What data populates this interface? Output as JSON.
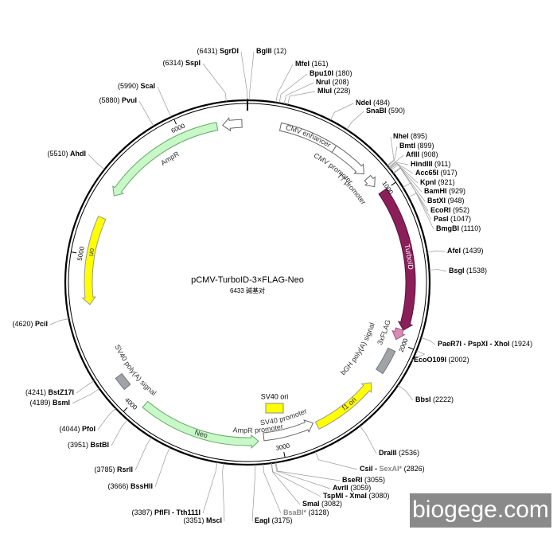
{
  "title": "pCMV-TurboID-3×FLAG-Neo",
  "subtitle": "6433 碱基对",
  "watermark": "biogege.com",
  "total_bp": 6433,
  "scale_ticks": [
    1000,
    2000,
    3000,
    4000,
    5000,
    6000
  ],
  "sites": [
    {
      "name": "SgrDI",
      "pos": "(6431)"
    },
    {
      "name": "BglII",
      "pos": "(12)"
    },
    {
      "name": "MfeI",
      "pos": "(161)"
    },
    {
      "name": "Bpu10I",
      "pos": "(180)"
    },
    {
      "name": "NruI",
      "pos": "(208)"
    },
    {
      "name": "MluI",
      "pos": "(228)"
    },
    {
      "name": "NdeI",
      "pos": "(484)"
    },
    {
      "name": "SnaBI",
      "pos": "(590)"
    },
    {
      "name": "NheI",
      "pos": "(895)"
    },
    {
      "name": "BmtI",
      "pos": "(899)"
    },
    {
      "name": "AflII",
      "pos": "(908)"
    },
    {
      "name": "HindIII",
      "pos": "(911)"
    },
    {
      "name": "Acc65I",
      "pos": "(917)"
    },
    {
      "name": "KpnI",
      "pos": "(921)"
    },
    {
      "name": "BamHI",
      "pos": "(929)"
    },
    {
      "name": "BstXI",
      "pos": "(948)"
    },
    {
      "name": "EcoRI",
      "pos": "(952)"
    },
    {
      "name": "PasI",
      "pos": "(1047)"
    },
    {
      "name": "BmgBI",
      "pos": "(1110)"
    },
    {
      "name": "AfeI",
      "pos": "(1439)"
    },
    {
      "name": "BsgI",
      "pos": "(1538)"
    },
    {
      "name": "PaeR7I - PspXI - XhoI",
      "pos": "(1924)"
    },
    {
      "name": "EcoO109I",
      "pos": "(2002)"
    },
    {
      "name": "BbsI",
      "pos": "(2222)"
    },
    {
      "name": "DraIII",
      "pos": "(2536)"
    },
    {
      "name": "CsiI -",
      "name_gray": "SexAI*",
      "pos": "(2826)"
    },
    {
      "name": "BseRI",
      "pos": "(3055)"
    },
    {
      "name": "AvrII",
      "pos": "(3059)"
    },
    {
      "name": "TspMI - XmaI",
      "pos": "(3080)"
    },
    {
      "name": "SmaI",
      "pos": "(3082)"
    },
    {
      "name_gray": "BsaBI*",
      "pos": "(3128)"
    },
    {
      "name": "EagI",
      "pos": "(3175)"
    },
    {
      "name": "SspI",
      "pos": "(6314)"
    },
    {
      "name": "ScaI",
      "pos": "(5990)"
    },
    {
      "name": "PvuI",
      "pos": "(5880)"
    },
    {
      "name": "AhdI",
      "pos": "(5510)"
    },
    {
      "name": "PciI",
      "pos": "(4620)"
    },
    {
      "name": "BstZ17I",
      "pos": "(4241)"
    },
    {
      "name": "BsmI",
      "pos": "(4189)"
    },
    {
      "name": "PfoI",
      "pos": "(4044)"
    },
    {
      "name": "BstBI",
      "pos": "(3951)"
    },
    {
      "name": "RsrII",
      "pos": "(3785)"
    },
    {
      "name": "BssHII",
      "pos": "(3666)"
    },
    {
      "name": "PflFI - Tth111I",
      "pos": "(3387)"
    },
    {
      "name": "MscI",
      "pos": "(3351)"
    }
  ],
  "features": [
    "AmpR promoter",
    "AmpR",
    "CMV enhancer",
    "CMV promoter",
    "T7 promoter",
    "TurboID",
    "3xFLAG",
    "bGH poly(A) signal",
    "f1 ori",
    "SV40 promoter",
    "Neo",
    "SV40 poly(A) signal",
    "ori",
    "SV40 ori"
  ]
}
